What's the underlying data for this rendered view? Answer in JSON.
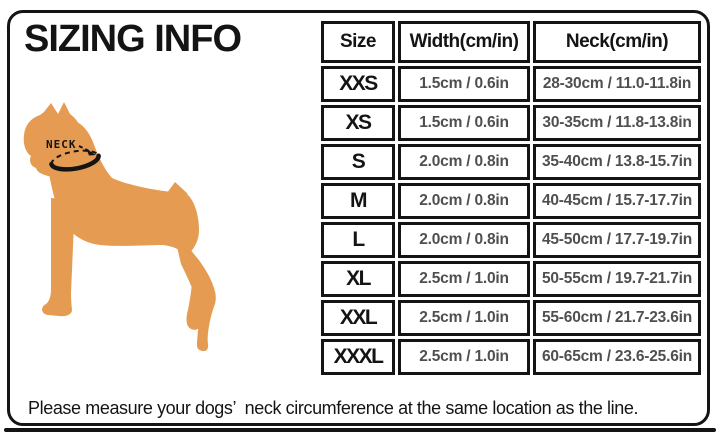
{
  "page": {
    "title": "SIZING INFO",
    "caption": "Please measure your dogs’  neck circumference at the same location as the line."
  },
  "diagram": {
    "neck_label": "NECK"
  },
  "table": {
    "headers": [
      "Size",
      "Width(cm/in)",
      "Neck(cm/in)"
    ],
    "rows": [
      {
        "size": "XXS",
        "width": "1.5cm / 0.6in",
        "neck": "28-30cm / 11.0-11.8in"
      },
      {
        "size": "XS",
        "width": "1.5cm / 0.6in",
        "neck": "30-35cm / 11.8-13.8in"
      },
      {
        "size": "S",
        "width": "2.0cm / 0.8in",
        "neck": "35-40cm / 13.8-15.7in"
      },
      {
        "size": "M",
        "width": "2.0cm / 0.8in",
        "neck": "40-45cm / 15.7-17.7in"
      },
      {
        "size": "L",
        "width": "2.0cm / 0.8in",
        "neck": "45-50cm / 17.7-19.7in"
      },
      {
        "size": "XL",
        "width": "2.5cm / 1.0in",
        "neck": "50-55cm / 19.7-21.7in"
      },
      {
        "size": "XXL",
        "width": "2.5cm / 1.0in",
        "neck": "55-60cm / 21.7-23.6in"
      },
      {
        "size": "XXXL",
        "width": "2.5cm / 1.0in",
        "neck": "60-65cm / 23.6-25.6in"
      }
    ]
  },
  "colors": {
    "dog": "#E59B51",
    "ink": "#141414",
    "value_text": "#4f4f4f"
  }
}
